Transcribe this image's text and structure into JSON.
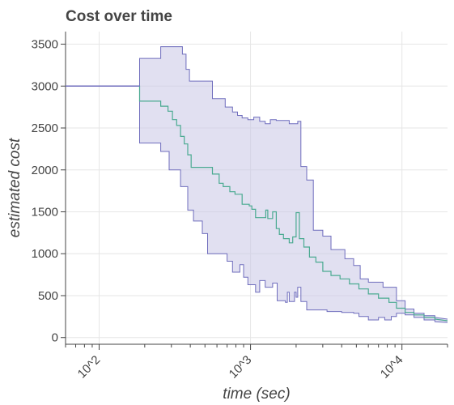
{
  "chart_data": {
    "type": "area",
    "title": "Cost over time",
    "xlabel": "time (sec)",
    "ylabel": "estimated cost",
    "x_scale": "log",
    "xlim": [
      60,
      20000
    ],
    "ylim": [
      -80,
      3650
    ],
    "x_ticks": [
      100,
      1000,
      10000
    ],
    "x_tick_labels": [
      "10^2",
      "10^3",
      "10^4"
    ],
    "y_ticks": [
      0,
      500,
      1000,
      1500,
      2000,
      2500,
      3000,
      3500
    ],
    "y_tick_labels": [
      "0",
      "500",
      "1000",
      "1500",
      "2000",
      "2500",
      "3000",
      "3500"
    ],
    "grid": true,
    "colors": {
      "band_fill": "#c8c6e6",
      "band_line": "#6f6dbd",
      "mean_line": "#4aaa91",
      "axis": "#444444",
      "grid": "#e6e6e6"
    },
    "series": [
      {
        "role": "mean",
        "points": [
          [
            60,
            3000
          ],
          [
            185,
            3000
          ],
          [
            185,
            2820
          ],
          [
            255,
            2820
          ],
          [
            255,
            2760
          ],
          [
            285,
            2760
          ],
          [
            285,
            2700
          ],
          [
            305,
            2700
          ],
          [
            305,
            2600
          ],
          [
            325,
            2600
          ],
          [
            325,
            2530
          ],
          [
            345,
            2530
          ],
          [
            345,
            2400
          ],
          [
            365,
            2400
          ],
          [
            365,
            2310
          ],
          [
            385,
            2310
          ],
          [
            385,
            2180
          ],
          [
            405,
            2180
          ],
          [
            405,
            2030
          ],
          [
            560,
            2030
          ],
          [
            560,
            1950
          ],
          [
            620,
            1950
          ],
          [
            620,
            1840
          ],
          [
            660,
            1840
          ],
          [
            660,
            1800
          ],
          [
            730,
            1800
          ],
          [
            730,
            1740
          ],
          [
            790,
            1740
          ],
          [
            790,
            1710
          ],
          [
            880,
            1710
          ],
          [
            880,
            1590
          ],
          [
            980,
            1590
          ],
          [
            980,
            1570
          ],
          [
            1020,
            1570
          ],
          [
            1020,
            1530
          ],
          [
            1080,
            1530
          ],
          [
            1080,
            1430
          ],
          [
            1260,
            1430
          ],
          [
            1260,
            1520
          ],
          [
            1300,
            1520
          ],
          [
            1300,
            1420
          ],
          [
            1400,
            1420
          ],
          [
            1400,
            1500
          ],
          [
            1480,
            1500
          ],
          [
            1480,
            1300
          ],
          [
            1550,
            1300
          ],
          [
            1550,
            1230
          ],
          [
            1650,
            1230
          ],
          [
            1650,
            1180
          ],
          [
            1800,
            1180
          ],
          [
            1800,
            1130
          ],
          [
            1900,
            1130
          ],
          [
            1900,
            1200
          ],
          [
            2000,
            1200
          ],
          [
            2000,
            1490
          ],
          [
            2100,
            1490
          ],
          [
            2100,
            1180
          ],
          [
            2250,
            1180
          ],
          [
            2250,
            1080
          ],
          [
            2450,
            1080
          ],
          [
            2450,
            960
          ],
          [
            2700,
            960
          ],
          [
            2700,
            900
          ],
          [
            3000,
            900
          ],
          [
            3000,
            790
          ],
          [
            3400,
            790
          ],
          [
            3400,
            740
          ],
          [
            3900,
            740
          ],
          [
            3900,
            700
          ],
          [
            4500,
            700
          ],
          [
            4500,
            640
          ],
          [
            5200,
            640
          ],
          [
            5200,
            580
          ],
          [
            6000,
            580
          ],
          [
            6000,
            520
          ],
          [
            7000,
            520
          ],
          [
            7000,
            470
          ],
          [
            8200,
            470
          ],
          [
            8200,
            420
          ],
          [
            9200,
            420
          ],
          [
            9200,
            350
          ],
          [
            10500,
            350
          ],
          [
            10500,
            300
          ],
          [
            12000,
            300
          ],
          [
            12000,
            270
          ],
          [
            14000,
            270
          ],
          [
            14000,
            240
          ],
          [
            16500,
            240
          ],
          [
            16500,
            220
          ],
          [
            20000,
            200
          ]
        ]
      },
      {
        "role": "upper",
        "points": [
          [
            60,
            3000
          ],
          [
            185,
            3000
          ],
          [
            185,
            3330
          ],
          [
            255,
            3330
          ],
          [
            255,
            3470
          ],
          [
            355,
            3470
          ],
          [
            355,
            3380
          ],
          [
            375,
            3380
          ],
          [
            375,
            3200
          ],
          [
            395,
            3200
          ],
          [
            395,
            3060
          ],
          [
            560,
            3060
          ],
          [
            560,
            2850
          ],
          [
            680,
            2850
          ],
          [
            680,
            2750
          ],
          [
            760,
            2750
          ],
          [
            760,
            2690
          ],
          [
            820,
            2690
          ],
          [
            820,
            2650
          ],
          [
            880,
            2650
          ],
          [
            880,
            2620
          ],
          [
            960,
            2620
          ],
          [
            960,
            2600
          ],
          [
            1050,
            2600
          ],
          [
            1050,
            2630
          ],
          [
            1150,
            2630
          ],
          [
            1150,
            2580
          ],
          [
            1250,
            2580
          ],
          [
            1250,
            2550
          ],
          [
            1350,
            2550
          ],
          [
            1350,
            2600
          ],
          [
            1480,
            2600
          ],
          [
            1480,
            2590
          ],
          [
            1800,
            2590
          ],
          [
            1800,
            2550
          ],
          [
            2050,
            2550
          ],
          [
            2050,
            2580
          ],
          [
            2150,
            2580
          ],
          [
            2150,
            2040
          ],
          [
            2350,
            2040
          ],
          [
            2350,
            1880
          ],
          [
            2600,
            1880
          ],
          [
            2600,
            1280
          ],
          [
            3000,
            1280
          ],
          [
            3000,
            1210
          ],
          [
            3400,
            1210
          ],
          [
            3400,
            1050
          ],
          [
            4200,
            1050
          ],
          [
            4200,
            940
          ],
          [
            4800,
            940
          ],
          [
            4800,
            860
          ],
          [
            5300,
            860
          ],
          [
            5300,
            700
          ],
          [
            6000,
            700
          ],
          [
            6000,
            660
          ],
          [
            7500,
            660
          ],
          [
            7500,
            600
          ],
          [
            9200,
            600
          ],
          [
            9200,
            440
          ],
          [
            10500,
            440
          ],
          [
            10500,
            340
          ],
          [
            12000,
            340
          ],
          [
            12000,
            290
          ],
          [
            14000,
            290
          ],
          [
            14000,
            260
          ],
          [
            16500,
            260
          ],
          [
            16500,
            240
          ],
          [
            20000,
            220
          ]
        ]
      },
      {
        "role": "lower",
        "points": [
          [
            60,
            3000
          ],
          [
            185,
            3000
          ],
          [
            185,
            2320
          ],
          [
            255,
            2320
          ],
          [
            255,
            2220
          ],
          [
            290,
            2220
          ],
          [
            290,
            2000
          ],
          [
            345,
            2000
          ],
          [
            345,
            1800
          ],
          [
            385,
            1800
          ],
          [
            385,
            1520
          ],
          [
            420,
            1520
          ],
          [
            420,
            1390
          ],
          [
            480,
            1390
          ],
          [
            480,
            1240
          ],
          [
            520,
            1240
          ],
          [
            520,
            1000
          ],
          [
            700,
            1000
          ],
          [
            700,
            910
          ],
          [
            760,
            910
          ],
          [
            760,
            780
          ],
          [
            850,
            780
          ],
          [
            850,
            870
          ],
          [
            900,
            870
          ],
          [
            900,
            720
          ],
          [
            960,
            720
          ],
          [
            960,
            630
          ],
          [
            1080,
            630
          ],
          [
            1080,
            540
          ],
          [
            1150,
            540
          ],
          [
            1150,
            680
          ],
          [
            1250,
            680
          ],
          [
            1250,
            600
          ],
          [
            1400,
            600
          ],
          [
            1400,
            650
          ],
          [
            1500,
            650
          ],
          [
            1500,
            440
          ],
          [
            1700,
            440
          ],
          [
            1700,
            420
          ],
          [
            1750,
            420
          ],
          [
            1750,
            540
          ],
          [
            1800,
            540
          ],
          [
            1800,
            430
          ],
          [
            1950,
            430
          ],
          [
            1950,
            540
          ],
          [
            2000,
            540
          ],
          [
            2000,
            480
          ],
          [
            2050,
            480
          ],
          [
            2050,
            600
          ],
          [
            2150,
            600
          ],
          [
            2150,
            430
          ],
          [
            2350,
            430
          ],
          [
            2350,
            330
          ],
          [
            3200,
            330
          ],
          [
            3200,
            310
          ],
          [
            4000,
            310
          ],
          [
            4000,
            300
          ],
          [
            4800,
            300
          ],
          [
            4800,
            290
          ],
          [
            5200,
            290
          ],
          [
            5200,
            250
          ],
          [
            6000,
            250
          ],
          [
            6000,
            210
          ],
          [
            7000,
            210
          ],
          [
            7000,
            240
          ],
          [
            7700,
            240
          ],
          [
            7700,
            210
          ],
          [
            8500,
            210
          ],
          [
            8500,
            250
          ],
          [
            9200,
            250
          ],
          [
            9200,
            290
          ],
          [
            10500,
            290
          ],
          [
            10500,
            270
          ],
          [
            12000,
            270
          ],
          [
            12000,
            240
          ],
          [
            14000,
            240
          ],
          [
            14000,
            210
          ],
          [
            16500,
            210
          ],
          [
            16500,
            190
          ],
          [
            20000,
            180
          ]
        ]
      }
    ]
  }
}
